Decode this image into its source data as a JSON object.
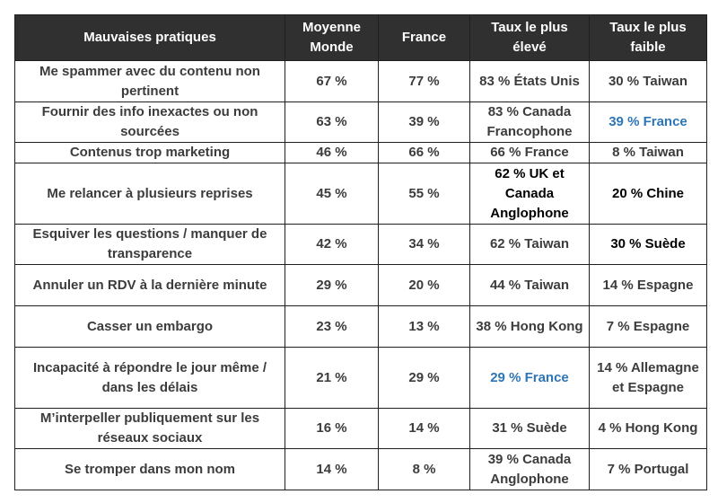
{
  "table": {
    "headers": [
      "Mauvaises pratiques",
      "Moyenne Monde",
      "France",
      "Taux le plus élevé",
      "Taux le plus faible"
    ],
    "rows": [
      [
        "Me spammer avec du contenu non pertinent",
        "67 %",
        "77 %",
        "83 % États Unis",
        "30 % Taiwan"
      ],
      [
        "Fournir des info inexactes ou non sourcées",
        "63 %",
        "39 %",
        "83 % Canada Francophone",
        "39 % France"
      ],
      [
        "Contenus trop marketing",
        "46 %",
        "66 %",
        "66 % France",
        "8 % Taiwan"
      ],
      [
        "Me relancer à plusieurs reprises",
        "45 %",
        "55 %",
        "62 % UK et Canada Anglophone",
        "20 % Chine"
      ],
      [
        "Esquiver les questions / manquer de transparence",
        "42 %",
        "34 %",
        "62 % Taiwan",
        "30 % Suède"
      ],
      [
        "Annuler un RDV à la dernière minute",
        "29 %",
        "20 %",
        "44 % Taiwan",
        "14 % Espagne"
      ],
      [
        "Casser un embargo",
        "23 %",
        "13 %",
        "38 % Hong Kong",
        "7 % Espagne"
      ],
      [
        "Incapacité à répondre le jour même / dans les délais",
        "21 %",
        "29 %",
        "29 % France",
        "14 % Allemagne et Espagne"
      ],
      [
        "M’interpeller publiquement sur les réseaux sociaux",
        "16 %",
        "14 %",
        "31 % Suède",
        "4 % Hong Kong"
      ],
      [
        "Se tromper dans mon nom",
        "14 %",
        "8 %",
        "39 % Canada Anglophone",
        "7 % Portugal"
      ]
    ]
  },
  "colors": {
    "header_bg": "#303030",
    "header_text": "#ffffff",
    "body_text": "#3c3c3c",
    "emphasis_black": "#000000",
    "highlight_blue": "#2e75b6"
  }
}
